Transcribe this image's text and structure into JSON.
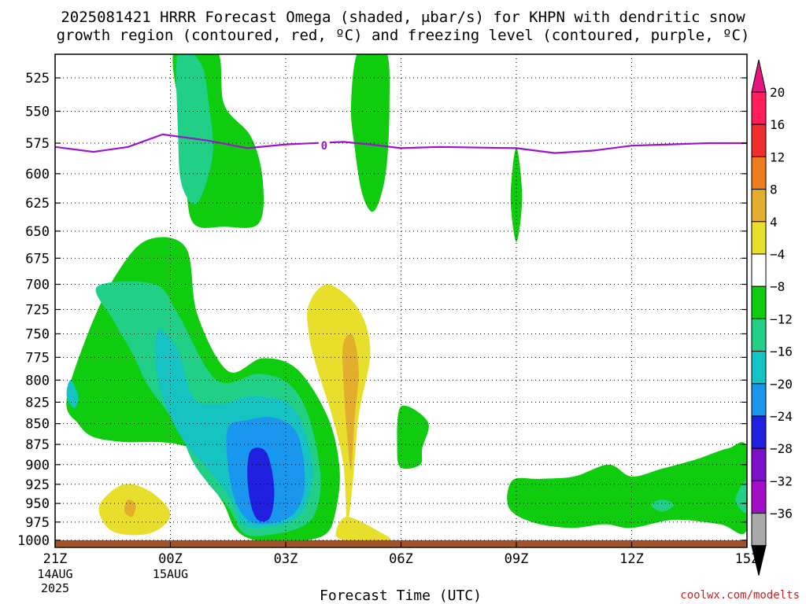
{
  "chart_data": {
    "type": "heatmap",
    "title_line1": "2025081421 HRRR Forecast Omega (shaded, μbar/s) for KHPN with dendritic snow",
    "title_line2": "growth region (contoured, red, ºC) and freezing level (contoured, purple, ºC)",
    "xlabel": "Forecast Time (UTC)",
    "ylabel": "",
    "x_ticks": [
      {
        "hour": 0,
        "label": "21Z",
        "sub1": "14AUG",
        "sub2": "2025"
      },
      {
        "hour": 3,
        "label": "00Z",
        "sub1": "15AUG",
        "sub2": ""
      },
      {
        "hour": 6,
        "label": "03Z",
        "sub1": "",
        "sub2": ""
      },
      {
        "hour": 9,
        "label": "06Z",
        "sub1": "",
        "sub2": ""
      },
      {
        "hour": 12,
        "label": "09Z",
        "sub1": "",
        "sub2": ""
      },
      {
        "hour": 15,
        "label": "12Z",
        "sub1": "",
        "sub2": ""
      },
      {
        "hour": 18,
        "label": "15Z",
        "sub1": "",
        "sub2": ""
      }
    ],
    "y_ticks": [
      525,
      550,
      575,
      600,
      625,
      650,
      675,
      700,
      725,
      750,
      775,
      800,
      825,
      850,
      875,
      900,
      925,
      950,
      975,
      1000
    ],
    "y_range": [
      508,
      1010
    ],
    "y_scale": "log",
    "x_range": [
      0,
      18
    ],
    "grid": true,
    "colorbar": {
      "levels": [
        "20",
        "16",
        "12",
        "8",
        "4",
        "−4",
        "−8",
        "−12",
        "−16",
        "−20",
        "−24",
        "−28",
        "−32",
        "−36"
      ],
      "colors": [
        "#ff1d5c",
        "#ef2d2d",
        "#ee7d1d",
        "#e3ad2d",
        "#e8df2c",
        "#ffffff",
        "#0fcc0f",
        "#22cf86",
        "#15c3c3",
        "#1996ee",
        "#2020e0",
        "#7d10cc",
        "#a20dc8",
        "#a9a9a9"
      ],
      "top_arrow_color": "#e8147d",
      "bottom_arrow_color": "#000000"
    },
    "freezing_level": {
      "label": "0",
      "color": "#9a14c8",
      "points": [
        [
          0,
          578
        ],
        [
          1,
          582
        ],
        [
          1.9,
          578
        ],
        [
          2.8,
          568
        ],
        [
          4,
          573
        ],
        [
          5,
          579
        ],
        [
          6,
          576
        ],
        [
          7.5,
          574
        ],
        [
          8.2,
          576
        ],
        [
          9,
          579
        ],
        [
          10,
          578
        ],
        [
          12,
          579
        ],
        [
          13,
          583
        ],
        [
          14,
          581
        ],
        [
          15,
          577
        ],
        [
          16,
          576
        ],
        [
          17,
          575
        ],
        [
          18,
          575
        ]
      ]
    },
    "omega_contours": [
      {
        "value": -4,
        "color": "#0fcc0f",
        "points": [
          [
            0.3,
            822
          ],
          [
            0.9,
            745
          ],
          [
            1.6,
            690
          ],
          [
            2.4,
            658
          ],
          [
            3.4,
            665
          ],
          [
            3.7,
            730
          ],
          [
            4.5,
            790
          ],
          [
            5.4,
            776
          ],
          [
            6.3,
            788
          ],
          [
            7.1,
            843
          ],
          [
            7.4,
            905
          ],
          [
            7.3,
            960
          ],
          [
            7.0,
            993
          ],
          [
            6.0,
            1003
          ],
          [
            5.2,
            1000
          ],
          [
            4.7,
            985
          ],
          [
            4.4,
            952
          ],
          [
            4.0,
            920
          ],
          [
            3.7,
            885
          ],
          [
            3.2,
            875
          ],
          [
            2.6,
            872
          ],
          [
            1.8,
            872
          ],
          [
            1.0,
            866
          ],
          [
            0.6,
            850
          ]
        ]
      },
      {
        "value": -4,
        "color": "#0fcc0f",
        "points": [
          [
            3.1,
            505
          ],
          [
            4.2,
            505
          ],
          [
            4.4,
            545
          ],
          [
            5.1,
            570
          ],
          [
            5.4,
            605
          ],
          [
            5.3,
            643
          ],
          [
            4.4,
            646
          ],
          [
            3.6,
            643
          ],
          [
            3.4,
            605
          ],
          [
            3.3,
            560
          ]
        ]
      },
      {
        "value": -4,
        "color": "#0fcc0f",
        "points": [
          [
            7.9,
            505
          ],
          [
            8.6,
            505
          ],
          [
            8.7,
            545
          ],
          [
            8.6,
            600
          ],
          [
            8.3,
            632
          ],
          [
            8.0,
            618
          ],
          [
            7.8,
            580
          ],
          [
            7.7,
            545
          ]
        ]
      },
      {
        "value": -4,
        "color": "#0fcc0f",
        "points": [
          [
            12.0,
            578
          ],
          [
            12.15,
            620
          ],
          [
            12.0,
            660
          ],
          [
            11.85,
            620
          ]
        ]
      },
      {
        "value": -4,
        "color": "#0fcc0f",
        "points": [
          [
            9.0,
            830
          ],
          [
            9.7,
            848
          ],
          [
            9.55,
            880
          ],
          [
            9.5,
            900
          ],
          [
            9.0,
            904
          ],
          [
            8.9,
            880
          ]
        ]
      },
      {
        "value": -4,
        "color": "#0fcc0f",
        "points": [
          [
            11.9,
            920
          ],
          [
            12.6,
            918
          ],
          [
            13.5,
            915
          ],
          [
            14.4,
            900
          ],
          [
            15.0,
            915
          ],
          [
            15.8,
            905
          ],
          [
            16.7,
            893
          ],
          [
            17.5,
            880
          ],
          [
            18.0,
            880
          ],
          [
            18.0,
            985
          ],
          [
            17.3,
            978
          ],
          [
            16.1,
            972
          ],
          [
            15.0,
            983
          ],
          [
            14.3,
            978
          ],
          [
            13.4,
            983
          ],
          [
            12.4,
            975
          ],
          [
            11.8,
            955
          ]
        ]
      },
      {
        "value": -8,
        "color": "#22cf86",
        "points": [
          [
            3.2,
            505
          ],
          [
            3.8,
            515
          ],
          [
            4.0,
            545
          ],
          [
            4.1,
            585
          ],
          [
            3.7,
            625
          ],
          [
            3.3,
            610
          ],
          [
            3.2,
            570
          ]
        ]
      },
      {
        "value": -8,
        "color": "#22cf86",
        "points": [
          [
            1.1,
            702
          ],
          [
            2.6,
            700
          ],
          [
            3.2,
            730
          ],
          [
            4.2,
            800
          ],
          [
            5.3,
            793
          ],
          [
            6.1,
            805
          ],
          [
            6.6,
            842
          ],
          [
            6.9,
            910
          ],
          [
            6.8,
            958
          ],
          [
            6.4,
            982
          ],
          [
            5.5,
            993
          ],
          [
            4.9,
            990
          ],
          [
            4.5,
            955
          ],
          [
            4.0,
            925
          ],
          [
            3.6,
            898
          ],
          [
            3.3,
            866
          ],
          [
            2.9,
            835
          ],
          [
            2.4,
            805
          ],
          [
            2.0,
            770
          ],
          [
            1.5,
            735
          ]
        ]
      },
      {
        "value": -8,
        "color": "#22cf86",
        "points": [
          [
            15.8,
            945
          ],
          [
            16.1,
            952
          ],
          [
            15.8,
            961
          ],
          [
            15.5,
            952
          ]
        ]
      },
      {
        "value": -8,
        "color": "#22cf86",
        "points": [
          [
            18.0,
            920
          ],
          [
            17.7,
            945
          ],
          [
            18.0,
            962
          ]
        ]
      },
      {
        "value": -12,
        "color": "#15c3c3",
        "points": [
          [
            0.4,
            800
          ],
          [
            0.6,
            818
          ],
          [
            0.5,
            832
          ],
          [
            0.3,
            818
          ]
        ]
      },
      {
        "value": -12,
        "color": "#15c3c3",
        "points": [
          [
            2.7,
            745
          ],
          [
            3.2,
            768
          ],
          [
            3.6,
            820
          ],
          [
            4.3,
            827
          ],
          [
            5.2,
            818
          ],
          [
            6.2,
            832
          ],
          [
            6.7,
            900
          ],
          [
            6.5,
            955
          ],
          [
            6.1,
            975
          ],
          [
            5.5,
            982
          ],
          [
            4.9,
            979
          ],
          [
            4.6,
            948
          ],
          [
            4.2,
            918
          ],
          [
            3.6,
            886
          ],
          [
            3.2,
            860
          ],
          [
            2.8,
            820
          ],
          [
            2.6,
            780
          ]
        ]
      },
      {
        "value": -16,
        "color": "#1996ee",
        "points": [
          [
            4.5,
            855
          ],
          [
            5.0,
            846
          ],
          [
            5.7,
            843
          ],
          [
            6.3,
            862
          ],
          [
            6.5,
            920
          ],
          [
            6.3,
            958
          ],
          [
            5.8,
            975
          ],
          [
            5.1,
            975
          ],
          [
            4.7,
            948
          ],
          [
            4.5,
            902
          ]
        ]
      },
      {
        "value": -20,
        "color": "#2020e0",
        "points": [
          [
            5.1,
            882
          ],
          [
            5.5,
            885
          ],
          [
            5.7,
            930
          ],
          [
            5.6,
            968
          ],
          [
            5.3,
            973
          ],
          [
            5.1,
            953
          ],
          [
            5.0,
            912
          ]
        ]
      },
      {
        "value": 4,
        "color": "#e8df2c",
        "points": [
          [
            6.6,
            720
          ],
          [
            7.1,
            700
          ],
          [
            7.9,
            725
          ],
          [
            8.2,
            770
          ],
          [
            7.9,
            840
          ],
          [
            7.75,
            920
          ],
          [
            7.6,
            975
          ],
          [
            7.5,
            900
          ],
          [
            7.2,
            840
          ],
          [
            6.8,
            785
          ],
          [
            6.6,
            750
          ]
        ]
      },
      {
        "value": 4,
        "color": "#e8df2c",
        "points": [
          [
            1.2,
            948
          ],
          [
            1.8,
            925
          ],
          [
            2.5,
            935
          ],
          [
            3.0,
            965
          ],
          [
            2.5,
            990
          ],
          [
            1.6,
            990
          ],
          [
            1.2,
            970
          ]
        ]
      },
      {
        "value": 4,
        "color": "#e8df2c",
        "points": [
          [
            7.3,
            990
          ],
          [
            7.6,
            968
          ],
          [
            8.5,
            990
          ],
          [
            8.7,
            1000
          ],
          [
            8.0,
            1000
          ],
          [
            7.5,
            1000
          ]
        ]
      },
      {
        "value": 8,
        "color": "#e3ad2d",
        "points": [
          [
            7.5,
            760
          ],
          [
            7.75,
            752
          ],
          [
            7.9,
            790
          ],
          [
            7.8,
            840
          ],
          [
            7.7,
            905
          ],
          [
            7.6,
            865
          ],
          [
            7.5,
            800
          ]
        ]
      },
      {
        "value": 8,
        "color": "#e3ad2d",
        "points": [
          [
            1.9,
            945
          ],
          [
            2.1,
            952
          ],
          [
            2.0,
            968
          ],
          [
            1.8,
            960
          ]
        ]
      }
    ],
    "terrain": {
      "color": "#a0522d",
      "points": [
        [
          0,
          1000
        ],
        [
          18,
          1000
        ],
        [
          18,
          1009
        ],
        [
          0,
          1009
        ]
      ]
    },
    "credit": "coolwx.com/modelts"
  }
}
